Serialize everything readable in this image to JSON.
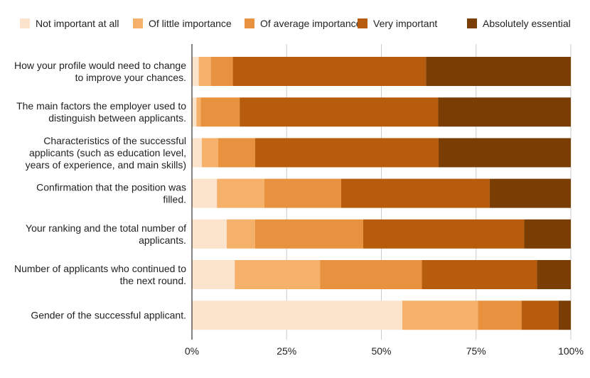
{
  "chart_data": {
    "type": "bar",
    "orientation": "horizontal",
    "stacked": true,
    "percent_stacked": true,
    "legend_position": "top",
    "series": [
      {
        "name": "Not important at all",
        "color": "#fbe3cc",
        "values": [
          1.8,
          1.2,
          2.6,
          6.6,
          9.2,
          11.3,
          55.5
        ]
      },
      {
        "name": "Of little importance",
        "color": "#f5b06a",
        "values": [
          3.2,
          1.1,
          4.3,
          12.5,
          7.5,
          22.5,
          20.0
        ]
      },
      {
        "name": "Of average importance",
        "color": "#e8913f",
        "values": [
          5.8,
          10.3,
          9.8,
          20.3,
          28.5,
          26.9,
          11.5
        ]
      },
      {
        "name": "Very important",
        "color": "#b75c0c",
        "values": [
          51.0,
          52.4,
          48.4,
          39.2,
          42.5,
          30.4,
          9.8
        ]
      },
      {
        "name": "Absolutely essential",
        "color": "#7a3d03",
        "values": [
          38.2,
          35.0,
          34.9,
          21.4,
          12.3,
          8.9,
          3.2
        ]
      }
    ],
    "categories": [
      [
        "How your profile would need to change",
        "to improve your chances."
      ],
      [
        "The main factors the employer used to",
        "distinguish between applicants."
      ],
      [
        "Characteristics of the successful",
        "applicants (such as education level,",
        "years of experience, and main skills)"
      ],
      [
        "Confirmation that the position was",
        "filled."
      ],
      [
        "Your ranking and the total number of",
        "applicants."
      ],
      [
        "Number of applicants who continued to",
        "the next round."
      ],
      [
        "Gender of the successful applicant."
      ]
    ],
    "x_ticks": [
      "0%",
      "25%",
      "50%",
      "75%",
      "100%"
    ],
    "xlim": [
      0,
      100
    ],
    "grid": true
  }
}
